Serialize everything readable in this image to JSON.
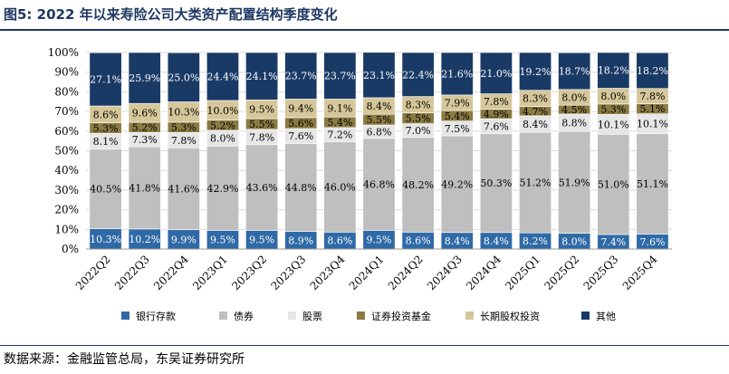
{
  "figure": {
    "title": "图5:  2022 年以来寿险公司大类资产配置结构季度变化",
    "source": "数据来源：金融监管总局，东吴证券研究所"
  },
  "chart_data": {
    "type": "bar",
    "stacked": true,
    "categories": [
      "2022Q2",
      "2022Q3",
      "2022Q4",
      "2023Q1",
      "2023Q2",
      "2023Q3",
      "2023Q4",
      "2024Q1",
      "2024Q2",
      "2024Q3",
      "2024Q4",
      "2025Q1",
      "2025Q2",
      "2025Q3",
      "2025Q4"
    ],
    "ylim": [
      0,
      100
    ],
    "yticks": [
      "0%",
      "10%",
      "20%",
      "30%",
      "40%",
      "50%",
      "60%",
      "70%",
      "80%",
      "90%",
      "100%"
    ],
    "legend_position": "bottom",
    "series": [
      {
        "name": "银行存款",
        "color": "#2f6aa7",
        "label_color": "#ffffff",
        "values": [
          10.3,
          10.2,
          9.9,
          9.5,
          9.5,
          8.9,
          8.6,
          9.5,
          8.6,
          8.4,
          8.4,
          8.2,
          8.0,
          7.4,
          7.6
        ]
      },
      {
        "name": "债券",
        "color": "#bfbfbf",
        "label_color": "#000000",
        "values": [
          40.5,
          41.8,
          41.6,
          42.9,
          43.6,
          44.8,
          46.0,
          46.8,
          48.2,
          49.2,
          50.3,
          51.2,
          51.9,
          51.0,
          51.1
        ]
      },
      {
        "name": "股票",
        "color": "#e6e6e6",
        "label_color": "#000000",
        "values": [
          8.1,
          7.3,
          7.8,
          8.0,
          7.8,
          7.6,
          7.2,
          6.8,
          7.0,
          7.5,
          7.6,
          8.4,
          8.8,
          10.1,
          10.1
        ]
      },
      {
        "name": "证券投资基金",
        "color": "#8b7b43",
        "label_color": "#000000",
        "values": [
          5.3,
          5.2,
          5.3,
          5.2,
          5.5,
          5.6,
          5.4,
          5.5,
          5.5,
          5.4,
          4.9,
          4.7,
          4.5,
          5.3,
          5.1
        ]
      },
      {
        "name": "长期股权投资",
        "color": "#d5c79a",
        "label_color": "#000000",
        "values": [
          8.6,
          9.6,
          10.3,
          10.0,
          9.5,
          9.4,
          9.1,
          8.4,
          8.3,
          7.9,
          7.8,
          8.3,
          8.0,
          8.0,
          7.8
        ]
      },
      {
        "name": "其他",
        "color": "#1a3a66",
        "label_color": "#ffffff",
        "values": [
          27.1,
          25.9,
          25.0,
          24.4,
          24.1,
          23.7,
          23.7,
          23.1,
          22.4,
          21.6,
          21.0,
          19.2,
          18.7,
          18.2,
          18.2
        ]
      }
    ]
  }
}
